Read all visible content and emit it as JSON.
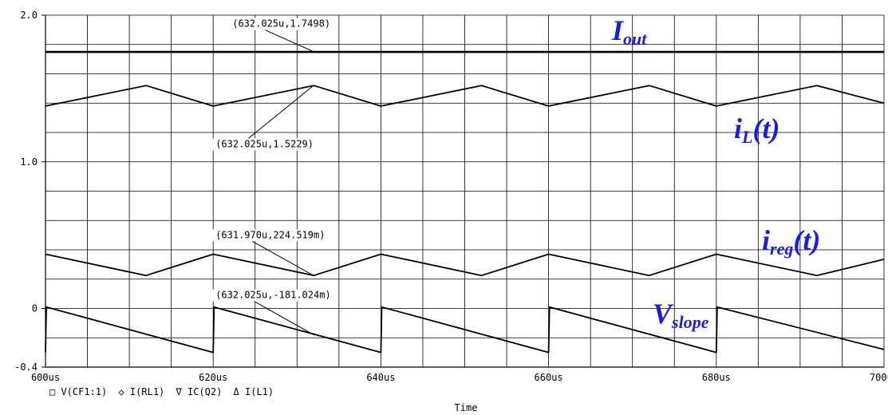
{
  "chart_data": {
    "type": "line",
    "xlabel": "Time",
    "xlim": [
      600,
      700
    ],
    "ylim": [
      -0.4,
      2.0
    ],
    "x_ticks": [
      {
        "value": 600,
        "label": "600us"
      },
      {
        "value": 620,
        "label": "620us"
      },
      {
        "value": 640,
        "label": "640us"
      },
      {
        "value": 660,
        "label": "660us"
      },
      {
        "value": 680,
        "label": "680us"
      },
      {
        "value": 700,
        "label": "700us"
      }
    ],
    "y_ticks": [
      {
        "value": 2.0,
        "label": "2.0"
      },
      {
        "value": 1.0,
        "label": "1.0"
      },
      {
        "value": 0,
        "label": "0"
      },
      {
        "value": -0.4,
        "label": "-0.4"
      }
    ],
    "grid": true,
    "x_grid_step": 5,
    "y_grid_step": 0.2,
    "legend": [
      "□ V(CF1:1)",
      "◇ I(RL1)",
      "∇ IC(Q2)",
      "Δ I(L1)"
    ],
    "series": [
      {
        "name": "I_out",
        "x": [
          600,
          600.3,
          700
        ],
        "y": [
          1.749,
          1.749,
          1.749
        ]
      },
      {
        "name": "i_L(t)",
        "x": [
          600,
          612,
          620,
          632,
          640,
          652,
          660,
          672,
          680,
          692,
          700
        ],
        "y": [
          1.38,
          1.52,
          1.38,
          1.52,
          1.38,
          1.52,
          1.38,
          1.52,
          1.38,
          1.52,
          1.4
        ]
      },
      {
        "name": "i_reg(t)",
        "x": [
          600,
          612,
          620,
          632,
          640,
          652,
          660,
          672,
          680,
          692,
          700
        ],
        "y": [
          0.37,
          0.225,
          0.37,
          0.225,
          0.37,
          0.225,
          0.37,
          0.225,
          0.37,
          0.225,
          0.335
        ]
      },
      {
        "name": "V_slope",
        "x": [
          600,
          600.1,
          620,
          620.1,
          640,
          640.1,
          660,
          660.1,
          680,
          680.1,
          700
        ],
        "y": [
          -0.3,
          0.01,
          -0.3,
          0.01,
          -0.3,
          0.01,
          -0.3,
          0.01,
          -0.3,
          0.01,
          -0.28
        ]
      }
    ],
    "cursor_annotations": [
      {
        "text": "(632.025u,1.7498)",
        "x": 632.025,
        "y": 1.7498,
        "label_x": 622,
        "label_y": 1.92
      },
      {
        "text": "(632.025u,1.5229)",
        "x": 632.025,
        "y": 1.5229,
        "label_x": 620,
        "label_y": 1.1
      },
      {
        "text": "(631.970u,224.519m)",
        "x": 631.97,
        "y": 0.224519,
        "label_x": 620,
        "label_y": 0.48
      },
      {
        "text": "(632.025u,-181.024m)",
        "x": 632.025,
        "y": -0.181024,
        "label_x": 620,
        "label_y": 0.07
      }
    ]
  }
}
